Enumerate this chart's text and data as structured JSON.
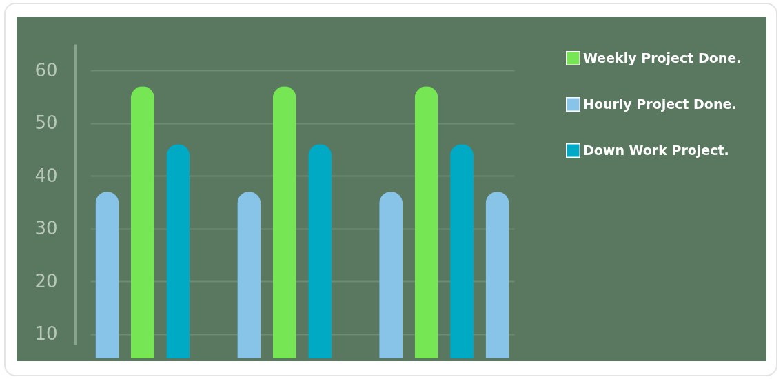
{
  "chart_data": {
    "type": "bar",
    "categories": [
      null,
      null,
      null,
      null,
      null,
      null,
      null,
      null,
      null,
      null,
      null,
      null
    ],
    "series": [
      {
        "name": "Weekly Project Done.",
        "color": "#77e655",
        "values": [
          null,
          57,
          null,
          null,
          null,
          57,
          null,
          null,
          null,
          57,
          null,
          null
        ]
      },
      {
        "name": "Hourly Project Done.",
        "color": "#88c4e8",
        "values": [
          37,
          null,
          null,
          null,
          37,
          null,
          null,
          null,
          37,
          null,
          null,
          37
        ]
      },
      {
        "name": "Down Work Project.",
        "color": "#00a9c4",
        "values": [
          null,
          null,
          46,
          null,
          null,
          null,
          46,
          null,
          null,
          null,
          46,
          null
        ]
      }
    ],
    "ylim": [
      8,
      65
    ],
    "yticks": [
      10,
      20,
      30,
      40,
      50,
      60
    ],
    "grid": "y",
    "legend": "right",
    "tick_labels": "y"
  }
}
